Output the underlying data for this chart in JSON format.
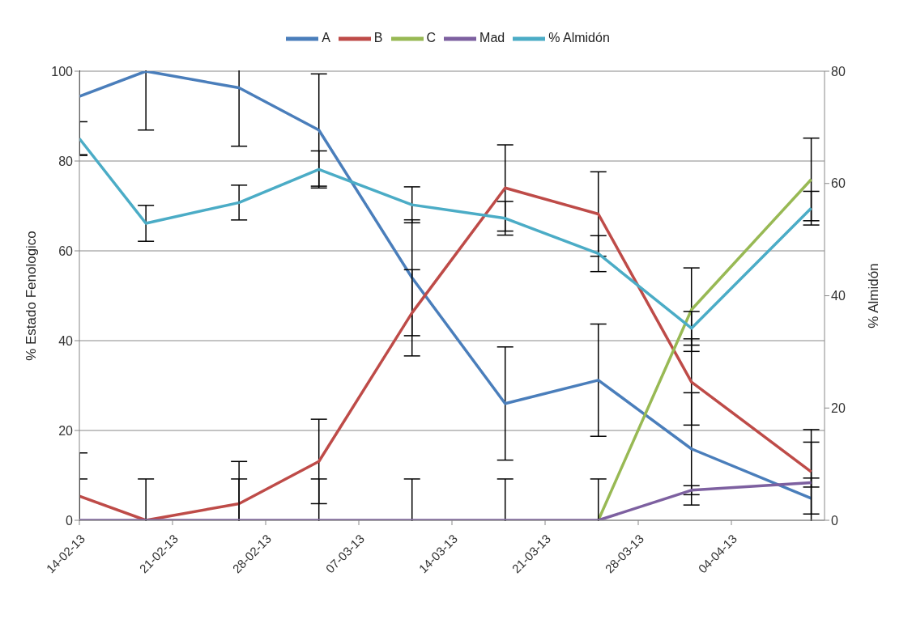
{
  "chart_data": {
    "type": "line",
    "x": [
      "--02-14",
      "--02-19",
      "--02-26",
      "--03-04",
      "--03-11",
      "--03-18",
      "--03-25",
      "--04-01",
      "--04-10"
    ],
    "series": [
      {
        "name": "A",
        "color": "#4a7ebb",
        "values": [
          94.4,
          100,
          96.3,
          86.9,
          54,
          26,
          31.2,
          15.9,
          4.9
        ],
        "errors": [
          13,
          13.1,
          13,
          12.5,
          12.9,
          12.6,
          12.5,
          12.5,
          12.5
        ]
      },
      {
        "name": "B",
        "color": "#be4b48",
        "values": [
          5.4,
          0,
          3.7,
          13.1,
          46.2,
          74,
          68.2,
          30.8,
          10.8
        ],
        "errors": [
          9.6,
          null,
          9.4,
          9.4,
          9.6,
          9.6,
          9.4,
          9.6,
          9.4
        ]
      },
      {
        "name": "C",
        "color": "#98b954",
        "values": [
          null,
          null,
          null,
          null,
          null,
          null,
          0,
          46.9,
          75.9
        ],
        "errors": [
          null,
          null,
          null,
          null,
          null,
          null,
          null,
          9.3,
          9.2
        ]
      },
      {
        "name": "Mad",
        "color": "#7d60a0",
        "values": [
          0,
          0,
          0,
          0,
          0,
          0,
          0,
          6.7,
          8.4
        ],
        "errors": [
          9.2,
          9.2,
          9.2,
          9.2,
          9.2,
          9.2,
          9.2,
          1,
          1
        ]
      },
      {
        "name": "% Almidón",
        "color": "#4bacc6",
        "axis": "y2",
        "values": [
          68,
          52.9,
          56.6,
          62.5,
          56.2,
          53.8,
          47.5,
          34.2,
          55.6
        ],
        "errors": [
          3,
          3.2,
          3.1,
          3.3,
          3.2,
          3,
          3.2,
          3,
          3
        ]
      }
    ],
    "xlim": [
      "--02-14",
      "--04-11"
    ],
    "xticks": [
      {
        "value": "--02-14",
        "label": "14-02-13"
      },
      {
        "value": "--02-21",
        "label": "21-02-13"
      },
      {
        "value": "--02-28",
        "label": "28-02-13"
      },
      {
        "value": "--03-07",
        "label": "07-03-13"
      },
      {
        "value": "--03-14",
        "label": "14-03-13"
      },
      {
        "value": "--03-21",
        "label": "21-03-13"
      },
      {
        "value": "--03-28",
        "label": "28-03-13"
      },
      {
        "value": "--04-04",
        "label": "04-04-13"
      }
    ],
    "ylim": [
      0,
      100
    ],
    "yticks": [
      0,
      20,
      40,
      60,
      80,
      100
    ],
    "y2lim": [
      0,
      80
    ],
    "y2ticks": [
      0,
      20,
      40,
      60,
      80
    ],
    "ylabel": "% Estado Fenologico",
    "y2label": "% Almidón",
    "grid": "y",
    "legend": "top",
    "marker": "none"
  }
}
